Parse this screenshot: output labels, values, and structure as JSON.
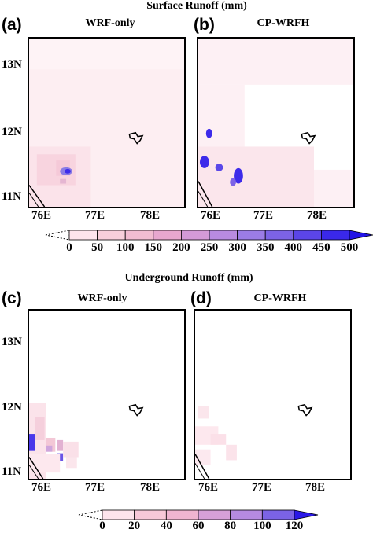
{
  "surface": {
    "title": "Surface Runoff (mm)",
    "panel_a": {
      "tag": "(a)",
      "title": "WRF-only"
    },
    "panel_b": {
      "tag": "(b)",
      "title": "CP-WRFH"
    },
    "colorbar": {
      "labels": [
        "0",
        "50",
        "100",
        "150",
        "200",
        "250",
        "300",
        "350",
        "400",
        "450",
        "500"
      ],
      "colors": [
        "#ffffff",
        "#fde4ec",
        "#f8cfdb",
        "#f2bcd1",
        "#e8a7cf",
        "#d49ad8",
        "#b88be0",
        "#9b7ce6",
        "#7c63e6",
        "#5b45e8",
        "#3a28ea",
        "#2214e6"
      ]
    }
  },
  "underground": {
    "title": "Underground Runoff (mm)",
    "panel_c": {
      "tag": "(c)",
      "title": "WRF-only"
    },
    "panel_d": {
      "tag": "(d)",
      "title": "CP-WRFH"
    },
    "colorbar": {
      "labels": [
        "0",
        "20",
        "40",
        "60",
        "80",
        "100",
        "120"
      ],
      "colors": [
        "#ffffff",
        "#fde4ec",
        "#f7c8d8",
        "#efb4d0",
        "#d7a0d8",
        "#b58ae0",
        "#7b63e6",
        "#2a18e8"
      ]
    }
  },
  "axes": {
    "lat_labels": [
      "13N",
      "12N",
      "11N"
    ],
    "lon_labels": [
      "76E",
      "77E",
      "78E"
    ]
  }
}
